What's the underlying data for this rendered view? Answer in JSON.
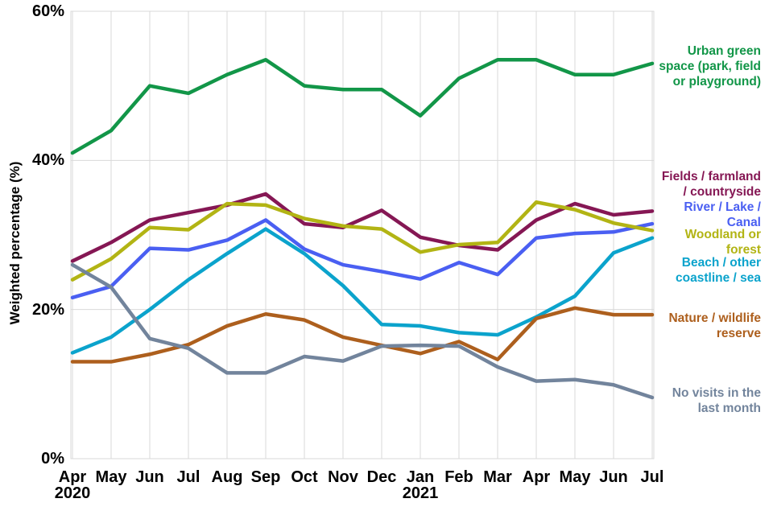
{
  "chart_data": {
    "type": "line",
    "title": "",
    "ylabel": "Weighted percentage (%)",
    "ylim": [
      0,
      60
    ],
    "yticks": [
      0,
      20,
      40,
      60
    ],
    "ytick_labels": [
      "0%",
      "20%",
      "40%",
      "60%"
    ],
    "grid": "vertical line at every month; horizontal lines at 20%, 40%, 60%; light gray",
    "grid_color": "#d9d9d9",
    "legend_position": "colored text labels to the right of plot",
    "x": [
      "Apr",
      "May",
      "Jun",
      "Jul",
      "Aug",
      "Sep",
      "Oct",
      "Nov",
      "Dec",
      "Jan",
      "Feb",
      "Mar",
      "Apr",
      "May",
      "Jun",
      "Jul"
    ],
    "x_years": [
      {
        "i": 0,
        "label": "2020"
      },
      {
        "i": 9,
        "label": "2021"
      }
    ],
    "series": [
      {
        "name": "Urban green space (park, field or playground)",
        "label_lines": [
          "Urban green",
          "space (park, field",
          "or playground)"
        ],
        "color": "#129648",
        "values": [
          41,
          44,
          50,
          49,
          51.5,
          53.5,
          50,
          49.5,
          49.5,
          46,
          51,
          53.5,
          53.5,
          51.5,
          51.5,
          53
        ]
      },
      {
        "name": "Fields / farmland / countryside",
        "label_lines": [
          "Fields / farmland",
          "/ countryside"
        ],
        "color": "#851754",
        "values": [
          26.5,
          29,
          32,
          33,
          34,
          35.5,
          31.5,
          31,
          33.3,
          29.7,
          28.6,
          28,
          32,
          34.2,
          32.7,
          33.2
        ]
      },
      {
        "name": "River / Lake / Canal",
        "label_lines": [
          "River / Lake /",
          "Canal"
        ],
        "color": "#4a5ff2",
        "values": [
          21.6,
          23.1,
          28.2,
          28,
          29.3,
          32,
          28.1,
          26,
          25.1,
          24.1,
          26.3,
          24.7,
          29.6,
          30.2,
          30.4,
          31.5
        ]
      },
      {
        "name": "Woodland or forest",
        "label_lines": [
          "Woodland or",
          "forest"
        ],
        "color": "#b2b414",
        "values": [
          24,
          26.8,
          31,
          30.7,
          34.2,
          34,
          32.2,
          31.2,
          30.8,
          27.7,
          28.7,
          29,
          34.4,
          33.4,
          31.6,
          30.6
        ]
      },
      {
        "name": "Beach / other coastline / sea",
        "label_lines": [
          "Beach / other",
          "coastline / sea"
        ],
        "color": "#0ba3cc",
        "values": [
          14.2,
          16.3,
          20,
          24,
          27.5,
          30.8,
          27.5,
          23.2,
          18,
          17.8,
          16.9,
          16.6,
          19,
          21.8,
          27.6,
          29.6
        ]
      },
      {
        "name": "Nature / wildlife reserve",
        "label_lines": [
          "Nature / wildlife",
          "reserve"
        ],
        "color": "#ad5f1d",
        "values": [
          13,
          13,
          14,
          15.3,
          17.8,
          19.4,
          18.6,
          16.3,
          15.2,
          14.1,
          15.7,
          13.3,
          18.8,
          20.2,
          19.3,
          19.3
        ]
      },
      {
        "name": "No visits in the last month",
        "label_lines": [
          "No visits in the",
          "last month"
        ],
        "color": "#72849c",
        "values": [
          26,
          23,
          16.1,
          14.8,
          11.5,
          11.5,
          13.7,
          13.1,
          15.1,
          15.2,
          15.1,
          12.3,
          10.4,
          10.6,
          9.9,
          8.2
        ]
      }
    ]
  }
}
